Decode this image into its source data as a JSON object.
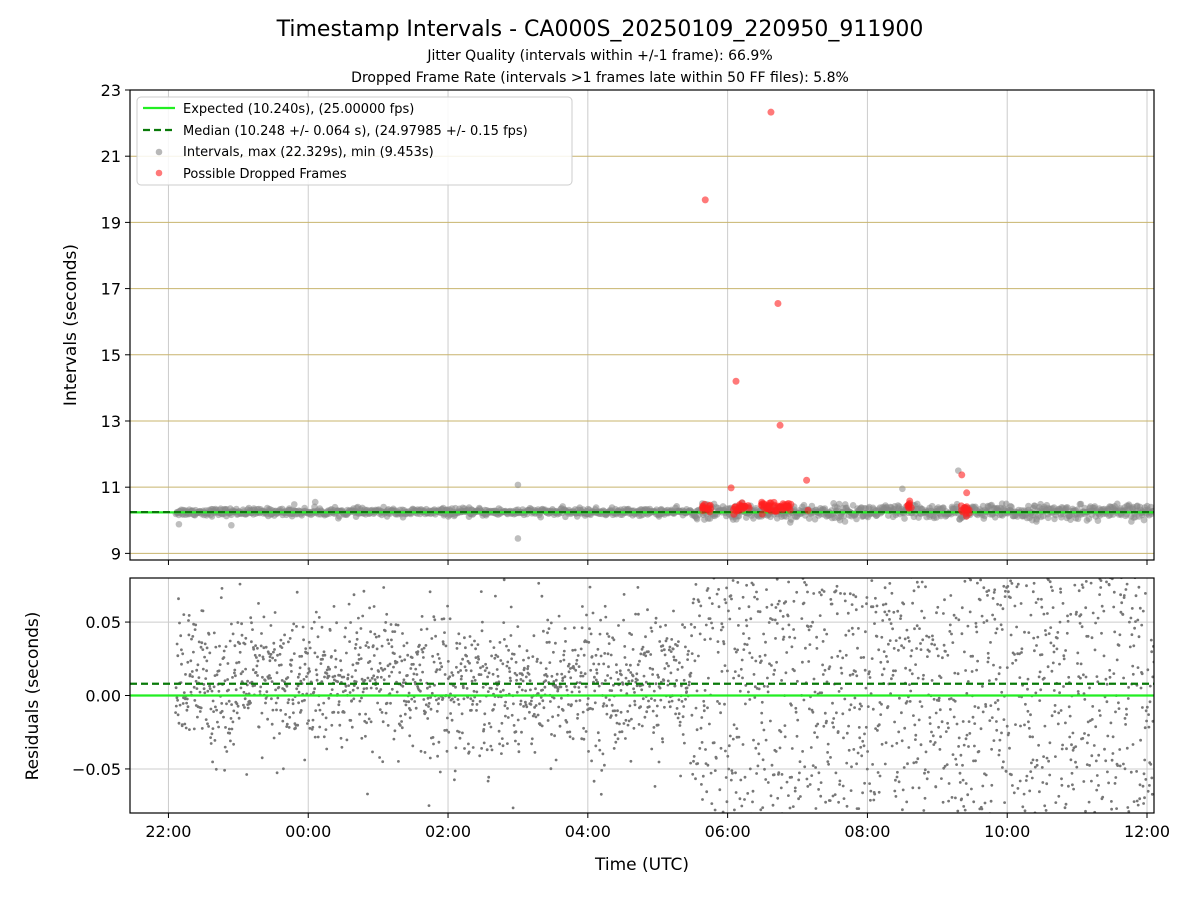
{
  "figure": {
    "title": "Timestamp Intervals - CA000S_20250109_220950_911900",
    "subtitle1": "Jitter Quality (intervals within +/-1 frame): 66.9%",
    "subtitle2": "Dropped Frame Rate (intervals >1 frames late within 50 FF files): 5.8%"
  },
  "chart_data": [
    {
      "type": "scatter",
      "panel": "top",
      "ylabel": "Intervals (seconds)",
      "xlabel": "",
      "x_units": "hours since 22:00 UTC (date axis)",
      "xlim": [
        -0.55,
        14.1
      ],
      "ylim": [
        8.8,
        23.0
      ],
      "yticks": [
        9,
        11,
        13,
        15,
        17,
        19,
        21,
        23
      ],
      "ytick_labels": [
        "9",
        "11",
        "13",
        "15",
        "17",
        "19",
        "21",
        "23"
      ],
      "grid": "horizontal",
      "grid_color": "#c8b46e",
      "legend_placement": "upper-left",
      "legend": [
        "Expected (10.240s), (25.00000 fps)",
        "Median (10.248 +/- 0.064 s), (24.97985 +/- 0.15 fps)",
        "Intervals, max (22.329s), min (9.453s)",
        "Possible Dropped Frames"
      ],
      "series": [
        {
          "name": "Expected (10.240s), (25.00000 fps)",
          "kind": "hline",
          "y": 10.24,
          "color": "#22ee22",
          "style": "solid"
        },
        {
          "name": "Median (10.248 +/- 0.064 s), (24.97985 +/- 0.15 fps)",
          "kind": "hline",
          "y": 10.248,
          "color": "#0a7a0a",
          "style": "dashed"
        },
        {
          "name": "Intervals, max (22.329s), min (9.453s)",
          "kind": "scatter",
          "color": "#888888",
          "x_range": [
            0.1,
            14.1
          ],
          "y_center": 10.25,
          "n": 1400,
          "outliers": [
            [
              5.0,
              11.07
            ],
            [
              5.0,
              9.45
            ],
            [
              0.15,
              9.88
            ],
            [
              0.9,
              9.85
            ],
            [
              1.8,
              10.48
            ],
            [
              2.1,
              10.55
            ],
            [
              11.3,
              11.5
            ],
            [
              10.5,
              10.95
            ]
          ]
        },
        {
          "name": "Possible Dropped Frames",
          "kind": "scatter",
          "color": "#ff2020",
          "points": [
            [
              8.62,
              22.33
            ],
            [
              7.68,
              19.68
            ],
            [
              8.72,
              16.55
            ],
            [
              8.12,
              14.2
            ],
            [
              8.75,
              12.87
            ],
            [
              9.13,
              11.21
            ],
            [
              8.05,
              10.98
            ],
            [
              11.35,
              11.37
            ],
            [
              11.42,
              10.83
            ],
            [
              9.15,
              10.3
            ]
          ],
          "clusters": [
            [
              7.7,
              10.4,
              0.06,
              14
            ],
            [
              8.2,
              10.38,
              0.12,
              22
            ],
            [
              8.7,
              10.42,
              0.22,
              48
            ],
            [
              10.6,
              10.45,
              0.04,
              8
            ],
            [
              11.4,
              10.33,
              0.06,
              16
            ]
          ]
        }
      ]
    },
    {
      "type": "scatter",
      "panel": "bottom",
      "ylabel": "Residuals (seconds)",
      "xlabel": "Time (UTC)",
      "x_units": "hours since 22:00 UTC (date axis)",
      "xlim": [
        -0.55,
        14.1
      ],
      "ylim": [
        -0.08,
        0.08
      ],
      "yticks": [
        -0.05,
        0.0,
        0.05
      ],
      "ytick_labels": [
        "−0.05",
        "0.00",
        "0.05"
      ],
      "xticks": [
        0,
        2,
        4,
        6,
        8,
        10,
        12,
        14
      ],
      "xtick_labels": [
        "22:00",
        "00:00",
        "02:00",
        "04:00",
        "06:00",
        "08:00",
        "10:00",
        "12:00"
      ],
      "grid": "both",
      "series": [
        {
          "kind": "hline",
          "y": 0.0,
          "color": "#22ee22",
          "style": "solid"
        },
        {
          "kind": "hline",
          "y": 0.008,
          "color": "#0a7a0a",
          "style": "dashed"
        },
        {
          "kind": "scatter",
          "color": "#777777",
          "n": 2600,
          "spread": [
            [
              0.1,
              0.045
            ],
            [
              7.5,
              0.03
            ],
            [
              7.5,
              0.09
            ],
            [
              14.1,
              0.09
            ]
          ]
        }
      ]
    }
  ]
}
